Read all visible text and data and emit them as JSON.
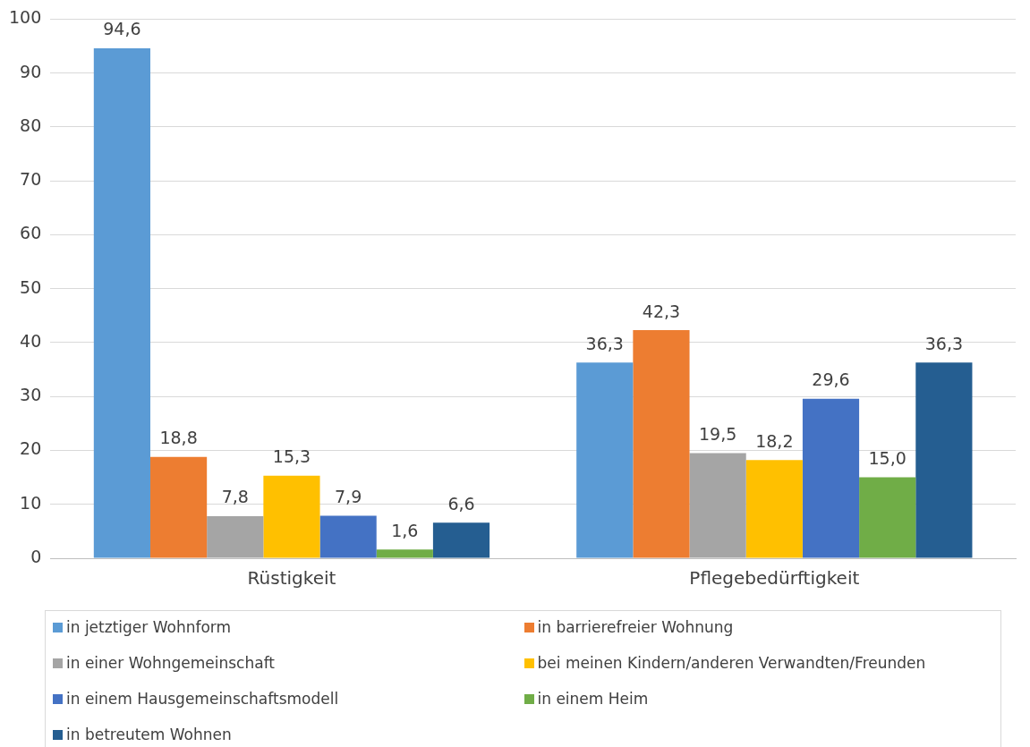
{
  "chart_data": {
    "type": "bar",
    "categories": [
      "Rüstigkeit",
      "Pflegebedürftigkeit"
    ],
    "series": [
      {
        "name": "in jetztiger Wohnform",
        "color": "#5b9bd5",
        "values": [
          94.6,
          36.3
        ],
        "value_labels": [
          "94,6",
          "36,3"
        ]
      },
      {
        "name": "in barrierefreier Wohnung",
        "color": "#ed7d31",
        "values": [
          18.8,
          42.3
        ],
        "value_labels": [
          "18,8",
          "42,3"
        ]
      },
      {
        "name": "in einer Wohngemeinschaft",
        "color": "#a5a5a5",
        "values": [
          7.8,
          19.5
        ],
        "value_labels": [
          "7,8",
          "19,5"
        ]
      },
      {
        "name": "bei meinen Kindern/anderen Verwandten/Freunden",
        "color": "#ffc000",
        "values": [
          15.3,
          18.2
        ],
        "value_labels": [
          "15,3",
          "18,2"
        ]
      },
      {
        "name": "in einem Hausgemeinschaftsmodell",
        "color": "#4472c4",
        "values": [
          7.9,
          29.6
        ],
        "value_labels": [
          "7,9",
          "29,6"
        ]
      },
      {
        "name": "in einem Heim",
        "color": "#70ad47",
        "values": [
          1.6,
          15.0
        ],
        "value_labels": [
          "1,6",
          "15,0"
        ]
      },
      {
        "name": "in betreutem Wohnen",
        "color": "#255e91",
        "values": [
          6.6,
          36.3
        ],
        "value_labels": [
          "6,6",
          "36,3"
        ]
      }
    ],
    "ylim": [
      0,
      100
    ],
    "yticks": [
      0,
      10,
      20,
      30,
      40,
      50,
      60,
      70,
      80,
      90,
      100
    ],
    "grid": "y",
    "legend": "bottom"
  }
}
